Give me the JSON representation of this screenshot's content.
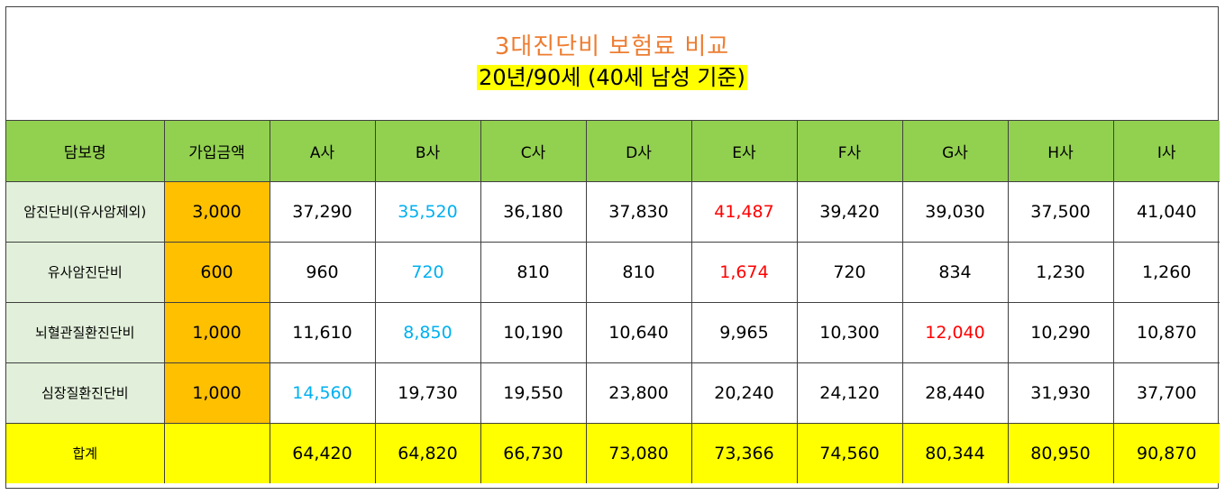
{
  "title": "3대진단비 보험료 비교",
  "subtitle": "20년/90세 (40세 남성 기준)",
  "colors": {
    "title": "#ed7d31",
    "header_bg": "#92d050",
    "label_bg": "#e2efda",
    "amount_bg": "#ffc000",
    "total_bg": "#ffff00",
    "lowest": "#00b0f0",
    "highest": "#ff0000"
  },
  "headers": [
    "담보명",
    "가입금액",
    "A사",
    "B사",
    "C사",
    "D사",
    "E사",
    "F사",
    "G사",
    "H사",
    "I사"
  ],
  "rows": [
    {
      "name": "암진단비(유사암제외)",
      "amount": "3,000",
      "values": [
        "37,290",
        "35,520",
        "36,180",
        "37,830",
        "41,487",
        "39,420",
        "39,030",
        "37,500",
        "41,040"
      ],
      "lowest_index": 1,
      "highest_index": 4
    },
    {
      "name": "유사암진단비",
      "amount": "600",
      "values": [
        "960",
        "720",
        "810",
        "810",
        "1,674",
        "720",
        "834",
        "1,230",
        "1,260"
      ],
      "lowest_index": 1,
      "highest_index": 4
    },
    {
      "name": "뇌혈관질환진단비",
      "amount": "1,000",
      "values": [
        "11,610",
        "8,850",
        "10,190",
        "10,640",
        "9,965",
        "10,300",
        "12,040",
        "10,290",
        "10,870"
      ],
      "lowest_index": 1,
      "highest_index": 6
    },
    {
      "name": "심장질환진단비",
      "amount": "1,000",
      "values": [
        "14,560",
        "19,730",
        "19,550",
        "23,800",
        "20,240",
        "24,120",
        "28,440",
        "31,930",
        "37,700"
      ],
      "lowest_index": 0,
      "highest_index": -1
    }
  ],
  "total": {
    "name": "합계",
    "amount": "",
    "values": [
      "64,420",
      "64,820",
      "66,730",
      "73,080",
      "73,366",
      "74,560",
      "80,344",
      "80,950",
      "90,870"
    ]
  }
}
